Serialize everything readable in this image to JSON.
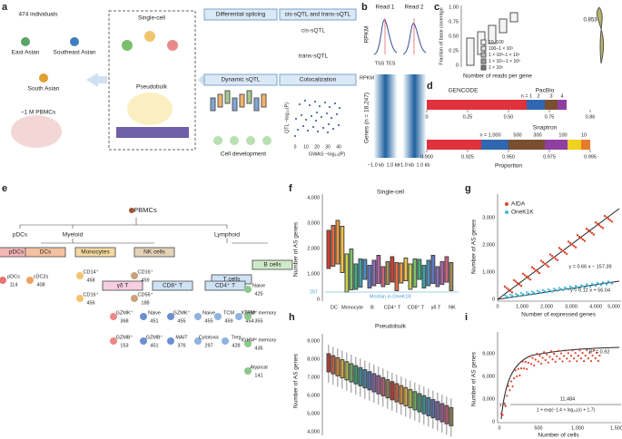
{
  "panel_labels": [
    "a",
    "b",
    "c",
    "d",
    "e",
    "f",
    "g",
    "h",
    "i"
  ],
  "a": {
    "individuals": "474 individuals",
    "groups": [
      "East Asian",
      "Southeast Asian",
      "South Asian"
    ],
    "pbmcs": "~1 M PBMCs",
    "single_cell": "Single-cell",
    "pseudobulk": "Pseudobulk",
    "boxes": [
      "Differential splicing",
      "cis-sQTL and trans-sQTL",
      "Dynamic sQTL",
      "Colocalization"
    ],
    "cis": "cis-sQTL",
    "trans": "trans-sQTL",
    "cell_dev": "Cell development",
    "qtl_axis": "QTL −log₁₀(P)",
    "gwas_axis": "GWAS −log₁₀(P)",
    "gwas_ticks": [
      "0",
      "10",
      "20",
      "30",
      "40"
    ]
  },
  "b": {
    "reads": [
      "Read 1",
      "Read 2"
    ],
    "rpkm": "RPKM",
    "tss_tes": "TSS TES",
    "rpkm2": "RPKM",
    "genes": "Genes (n = 18,247)",
    "xticks": [
      "−1.0 kb",
      "1.0 kb",
      "−1.0 kb",
      "1.0 kb"
    ]
  },
  "c": {
    "ylabel": "Fraction of base coverage",
    "yticks": [
      "0",
      "0.25",
      "0.50",
      "0.75",
      "1.00"
    ],
    "legend": [
      "10–100",
      "100–1 × 10³",
      "1 × 10³–1 × 10⁴",
      "1 × 10⁴–1 × 10⁵",
      "1 × 10⁵"
    ],
    "xlabel": "Number of reads per gene",
    "annotation": "0.853"
  },
  "d": {
    "gencode": "GENCODE",
    "pacbio": "PacBio",
    "n_top": [
      "n = 1",
      "2",
      "3",
      "4"
    ],
    "ticks_top": [
      "0",
      "0.25",
      "0.50",
      "0.75",
      "0.86"
    ],
    "snaptron": "Snaptron",
    "n_bottom": [
      "n = 1,000",
      "500",
      "300",
      "100",
      "10"
    ],
    "ticks_bottom": [
      "0.900",
      "0.925",
      "0.950",
      "0.975",
      "0.995"
    ],
    "xlabel": "Proportion"
  },
  "e": {
    "root": "PBMCs",
    "branches": [
      "pDCs",
      "Myeloid",
      "Lymphoid"
    ],
    "groups": [
      "pDCs",
      "DCs",
      "Monocytes",
      "NK cells",
      "T cells",
      "B cells",
      "γδ T",
      "CD8⁺ T",
      "CD4⁺ T"
    ],
    "leaves": [
      {
        "label": "pDCs",
        "n": "114"
      },
      {
        "label": "cDC2s",
        "n": "408"
      },
      {
        "label": "CD14⁺",
        "n": "458"
      },
      {
        "label": "CD16⁺",
        "n": "456"
      },
      {
        "label": "CD16⁺",
        "n": "459"
      },
      {
        "label": "CD56⁺",
        "n": "188"
      },
      {
        "label": "GZMK⁺",
        "n": "368"
      },
      {
        "label": "GZMB⁺",
        "n": "153"
      },
      {
        "label": "Naive",
        "n": "451"
      },
      {
        "label": "GZMK⁺",
        "n": "455"
      },
      {
        "label": "GZMB⁺",
        "n": "451"
      },
      {
        "label": "MAIT",
        "n": "376"
      },
      {
        "label": "Naive",
        "n": "455"
      },
      {
        "label": "TCM",
        "n": "459"
      },
      {
        "label": "TEM",
        "n": "454"
      },
      {
        "label": "Cytotoxic",
        "n": "297"
      },
      {
        "label": "Treg",
        "n": "428"
      },
      {
        "label": "Naive",
        "n": "425"
      },
      {
        "label": "IGHMʰⁱ memory",
        "n": "355"
      },
      {
        "label": "IGHMˡᵒ memory",
        "n": "435"
      },
      {
        "label": "Atypical",
        "n": "141"
      }
    ]
  },
  "f": {
    "title": "Single-cell",
    "ylabel": "Number of AS genes",
    "yticks": [
      "0",
      "1,000",
      "2,000",
      "3,000",
      "4,000"
    ],
    "median_value": "207",
    "median_label": "Median in OneK1K",
    "categories": [
      "DC",
      "Monocyte",
      "B",
      "CD4⁺ T",
      "CD8⁺ T",
      "γδ T",
      "NK"
    ]
  },
  "g": {
    "legend": [
      "AIDA",
      "OneK1K"
    ],
    "eq1": "y = 0.66 x − 157.39",
    "eq2": "y = 0.12 x + 56.04",
    "xlabel": "Number of expressed genes",
    "xticks": [
      "0",
      "1,000",
      "2,000",
      "3,000",
      "4,000",
      "5,000"
    ],
    "ylabel": "Number of AS genes",
    "yticks": [
      "0",
      "1,000",
      "2,000",
      "3,000"
    ]
  },
  "h": {
    "title": "Pseudobulk",
    "ylabel": "Number of AS genes",
    "yticks": [
      "4,000",
      "5,000",
      "6,000",
      "7,000",
      "8,000",
      "9,000"
    ]
  },
  "i": {
    "ylabel": "Number of AS genes",
    "yticks": [
      "0",
      "3,000",
      "6,000",
      "9,000"
    ],
    "xticks": [
      "0",
      "500",
      "1,000",
      "1,500"
    ],
    "xlabel": "Number of cells",
    "r2": "R² = 0.92",
    "y_eq": "y =",
    "numerator": "11,484",
    "denominator": "1 + exp(−1.4 × log₁₀(x) + 1.7)"
  }
}
